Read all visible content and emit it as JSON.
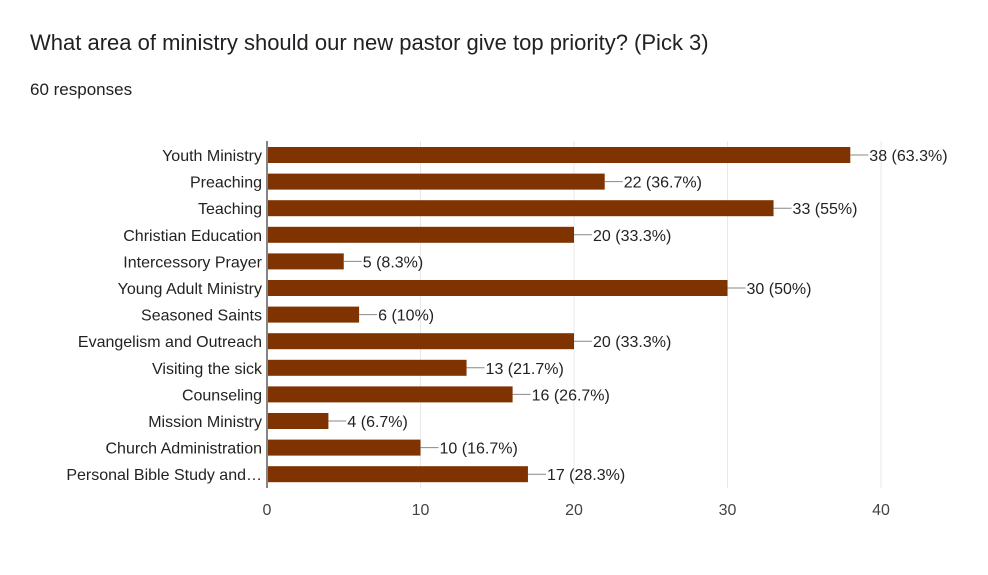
{
  "form": {
    "question": "What area of ministry should our new pastor give top priority? (Pick 3)",
    "responses": "60 responses"
  },
  "colors": {
    "bar": "#7f3300",
    "grid": "#e8e8e8",
    "axis": "#333333",
    "leader": "#888888"
  },
  "chart_data": {
    "type": "bar",
    "orientation": "horizontal",
    "title": "What area of ministry should our new pastor give top priority? (Pick 3)",
    "categories": [
      "Youth Ministry",
      "Preaching",
      "Teaching",
      "Christian Education",
      "Intercessory Prayer",
      "Young Adult Ministry",
      "Seasoned Saints",
      "Evangelism and Outreach",
      "Visiting the sick",
      "Counseling",
      "Mission Ministry",
      "Church Administration",
      "Personal Bible Study and…"
    ],
    "values": [
      38,
      22,
      33,
      20,
      5,
      30,
      6,
      20,
      13,
      16,
      4,
      10,
      17
    ],
    "data_labels": [
      "38 (63.3%)",
      "22 (36.7%)",
      "33 (55%)",
      "20 (33.3%)",
      "5 (8.3%)",
      "30 (50%)",
      "6 (10%)",
      "20 (33.3%)",
      "13 (21.7%)",
      "16 (26.7%)",
      "4 (6.7%)",
      "10 (16.7%)",
      "17 (28.3%)"
    ],
    "xlim": [
      0,
      40
    ],
    "xticks": [
      "0",
      "10",
      "20",
      "30",
      "40"
    ],
    "grid": true,
    "legend": "none"
  }
}
